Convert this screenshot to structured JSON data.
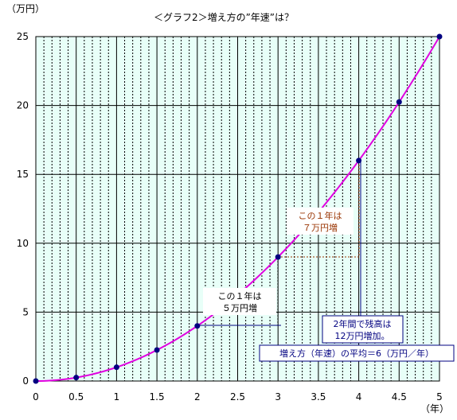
{
  "chart_data": {
    "type": "line",
    "title": "＜グラフ2＞増え方の”年速”は？",
    "ylabel": "（万円）",
    "xlabel": "（年）",
    "x_ticks": [
      "0",
      "0.5",
      "1",
      "1.5",
      "2",
      "2.5",
      "3",
      "3.5",
      "4",
      "4.5",
      "5"
    ],
    "y_ticks": [
      "0",
      "5",
      "10",
      "15",
      "20",
      "25"
    ],
    "xlim": [
      0,
      5
    ],
    "ylim": [
      0,
      25
    ],
    "x_minor_step": 0.1,
    "grid": true,
    "series": [
      {
        "x": [
          0,
          0.5,
          1,
          1.5,
          2,
          2.5,
          3,
          3.5,
          4,
          4.5,
          5
        ],
        "y": [
          0,
          0.25,
          1,
          2.25,
          4,
          6.25,
          9,
          12.25,
          16,
          20.25,
          25
        ],
        "line_color": "#e000e0",
        "marker_color": "#000080"
      }
    ],
    "annotations": {
      "a1": {
        "lines": [
          "この１年は",
          "５万円増"
        ],
        "color": "#000000"
      },
      "a2": {
        "lines": [
          "この１年は",
          "７万円増"
        ],
        "color": "#993300"
      },
      "a3": {
        "lines": [
          "2年間で残高は",
          "12万円増加。"
        ],
        "color": "#000080"
      },
      "a4": {
        "text": "増え方（年速）の平均＝6（万円／年）",
        "color": "#000080"
      }
    },
    "plot_bg": "#e8fff8"
  }
}
